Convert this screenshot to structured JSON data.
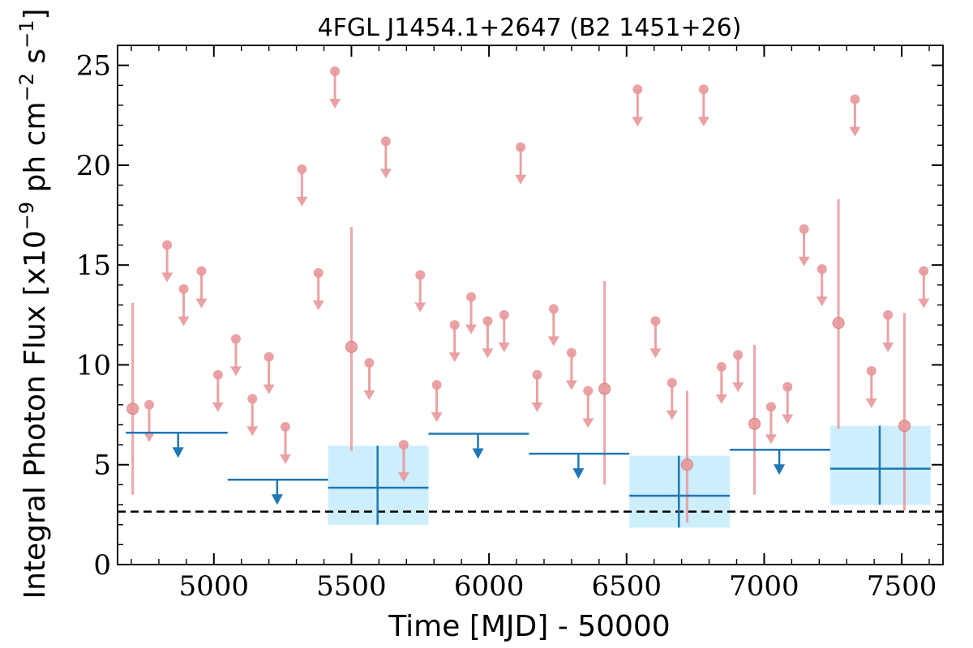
{
  "chart_data": {
    "type": "scatter",
    "title": "4FGL J1454.1+2647 (B2 1451+26)",
    "xlabel": "Time [MJD] - 50000",
    "ylabel": "Integral Photon Flux [x10",
    "ylabel_exp": "−9",
    "ylabel_unit": " ph cm",
    "ylabel_unit_exp": "−2",
    "ylabel_tail": " s",
    "ylabel_tail_exp": "−1",
    "ylabel_close": "]",
    "xlim": [
      4650,
      7650
    ],
    "ylim": [
      0,
      26
    ],
    "x_ticks": [
      5000,
      5500,
      6000,
      6500,
      7000,
      7500
    ],
    "y_ticks": [
      0,
      5,
      10,
      15,
      20,
      25
    ],
    "colors": {
      "short_bins": "#e8989b",
      "long_bins": "#1f77b4",
      "band_fill": "#cdeefc",
      "baseline": "#000000"
    },
    "baseline": 2.65,
    "short_bins": {
      "detections": [
        {
          "x": 4705,
          "y": 7.8,
          "ylo": 3.5,
          "yhi": 13.1
        },
        {
          "x": 5500,
          "y": 10.9,
          "ylo": 5.7,
          "yhi": 16.9
        },
        {
          "x": 6420,
          "y": 8.8,
          "ylo": 4.0,
          "yhi": 14.2
        },
        {
          "x": 6720,
          "y": 5.0,
          "ylo": 2.1,
          "yhi": 8.7
        },
        {
          "x": 6965,
          "y": 7.05,
          "ylo": 3.5,
          "yhi": 11.0
        },
        {
          "x": 7270,
          "y": 12.1,
          "ylo": 6.8,
          "yhi": 18.3
        },
        {
          "x": 7510,
          "y": 6.95,
          "ylo": 2.7,
          "yhi": 12.6
        }
      ],
      "upper_limits": [
        {
          "x": 4765,
          "y": 8.0
        },
        {
          "x": 4830,
          "y": 16.0
        },
        {
          "x": 4890,
          "y": 13.8
        },
        {
          "x": 4955,
          "y": 14.7
        },
        {
          "x": 5015,
          "y": 9.5
        },
        {
          "x": 5080,
          "y": 11.3
        },
        {
          "x": 5140,
          "y": 8.3
        },
        {
          "x": 5200,
          "y": 10.4
        },
        {
          "x": 5260,
          "y": 6.9
        },
        {
          "x": 5320,
          "y": 19.8
        },
        {
          "x": 5380,
          "y": 14.6
        },
        {
          "x": 5440,
          "y": 24.7
        },
        {
          "x": 5565,
          "y": 10.1
        },
        {
          "x": 5625,
          "y": 21.2
        },
        {
          "x": 5690,
          "y": 6.0
        },
        {
          "x": 5750,
          "y": 14.5
        },
        {
          "x": 5810,
          "y": 9.0
        },
        {
          "x": 5875,
          "y": 12.0
        },
        {
          "x": 5935,
          "y": 13.4
        },
        {
          "x": 5995,
          "y": 12.2
        },
        {
          "x": 6055,
          "y": 12.5
        },
        {
          "x": 6115,
          "y": 20.9
        },
        {
          "x": 6175,
          "y": 9.5
        },
        {
          "x": 6235,
          "y": 12.8
        },
        {
          "x": 6300,
          "y": 10.6
        },
        {
          "x": 6360,
          "y": 8.7
        },
        {
          "x": 6540,
          "y": 23.8
        },
        {
          "x": 6605,
          "y": 12.2
        },
        {
          "x": 6665,
          "y": 9.1
        },
        {
          "x": 6780,
          "y": 23.8
        },
        {
          "x": 6845,
          "y": 9.9
        },
        {
          "x": 6905,
          "y": 10.5
        },
        {
          "x": 7025,
          "y": 7.9
        },
        {
          "x": 7085,
          "y": 8.9
        },
        {
          "x": 7145,
          "y": 16.8
        },
        {
          "x": 7210,
          "y": 14.8
        },
        {
          "x": 7330,
          "y": 23.3
        },
        {
          "x": 7390,
          "y": 9.7
        },
        {
          "x": 7450,
          "y": 12.5
        },
        {
          "x": 7580,
          "y": 14.7
        }
      ]
    },
    "long_bins": {
      "upper_limits": [
        {
          "x": 4870,
          "xlo": 4680,
          "xhi": 5050,
          "y": 6.6
        },
        {
          "x": 5230,
          "xlo": 5050,
          "xhi": 5415,
          "y": 4.25
        },
        {
          "x": 5960,
          "xlo": 5780,
          "xhi": 6145,
          "y": 6.55
        },
        {
          "x": 6325,
          "xlo": 6145,
          "xhi": 6510,
          "y": 5.55
        },
        {
          "x": 7055,
          "xlo": 6875,
          "xhi": 7240,
          "y": 5.75
        }
      ],
      "detections": [
        {
          "x": 5595,
          "xlo": 5415,
          "xhi": 5780,
          "y": 3.85,
          "ylo": 2.0,
          "yhi": 5.95
        },
        {
          "x": 6690,
          "xlo": 6510,
          "xhi": 6875,
          "y": 3.45,
          "ylo": 1.85,
          "yhi": 5.45
        },
        {
          "x": 7420,
          "xlo": 7240,
          "xhi": 7605,
          "y": 4.8,
          "ylo": 3.0,
          "yhi": 6.95
        }
      ]
    }
  }
}
